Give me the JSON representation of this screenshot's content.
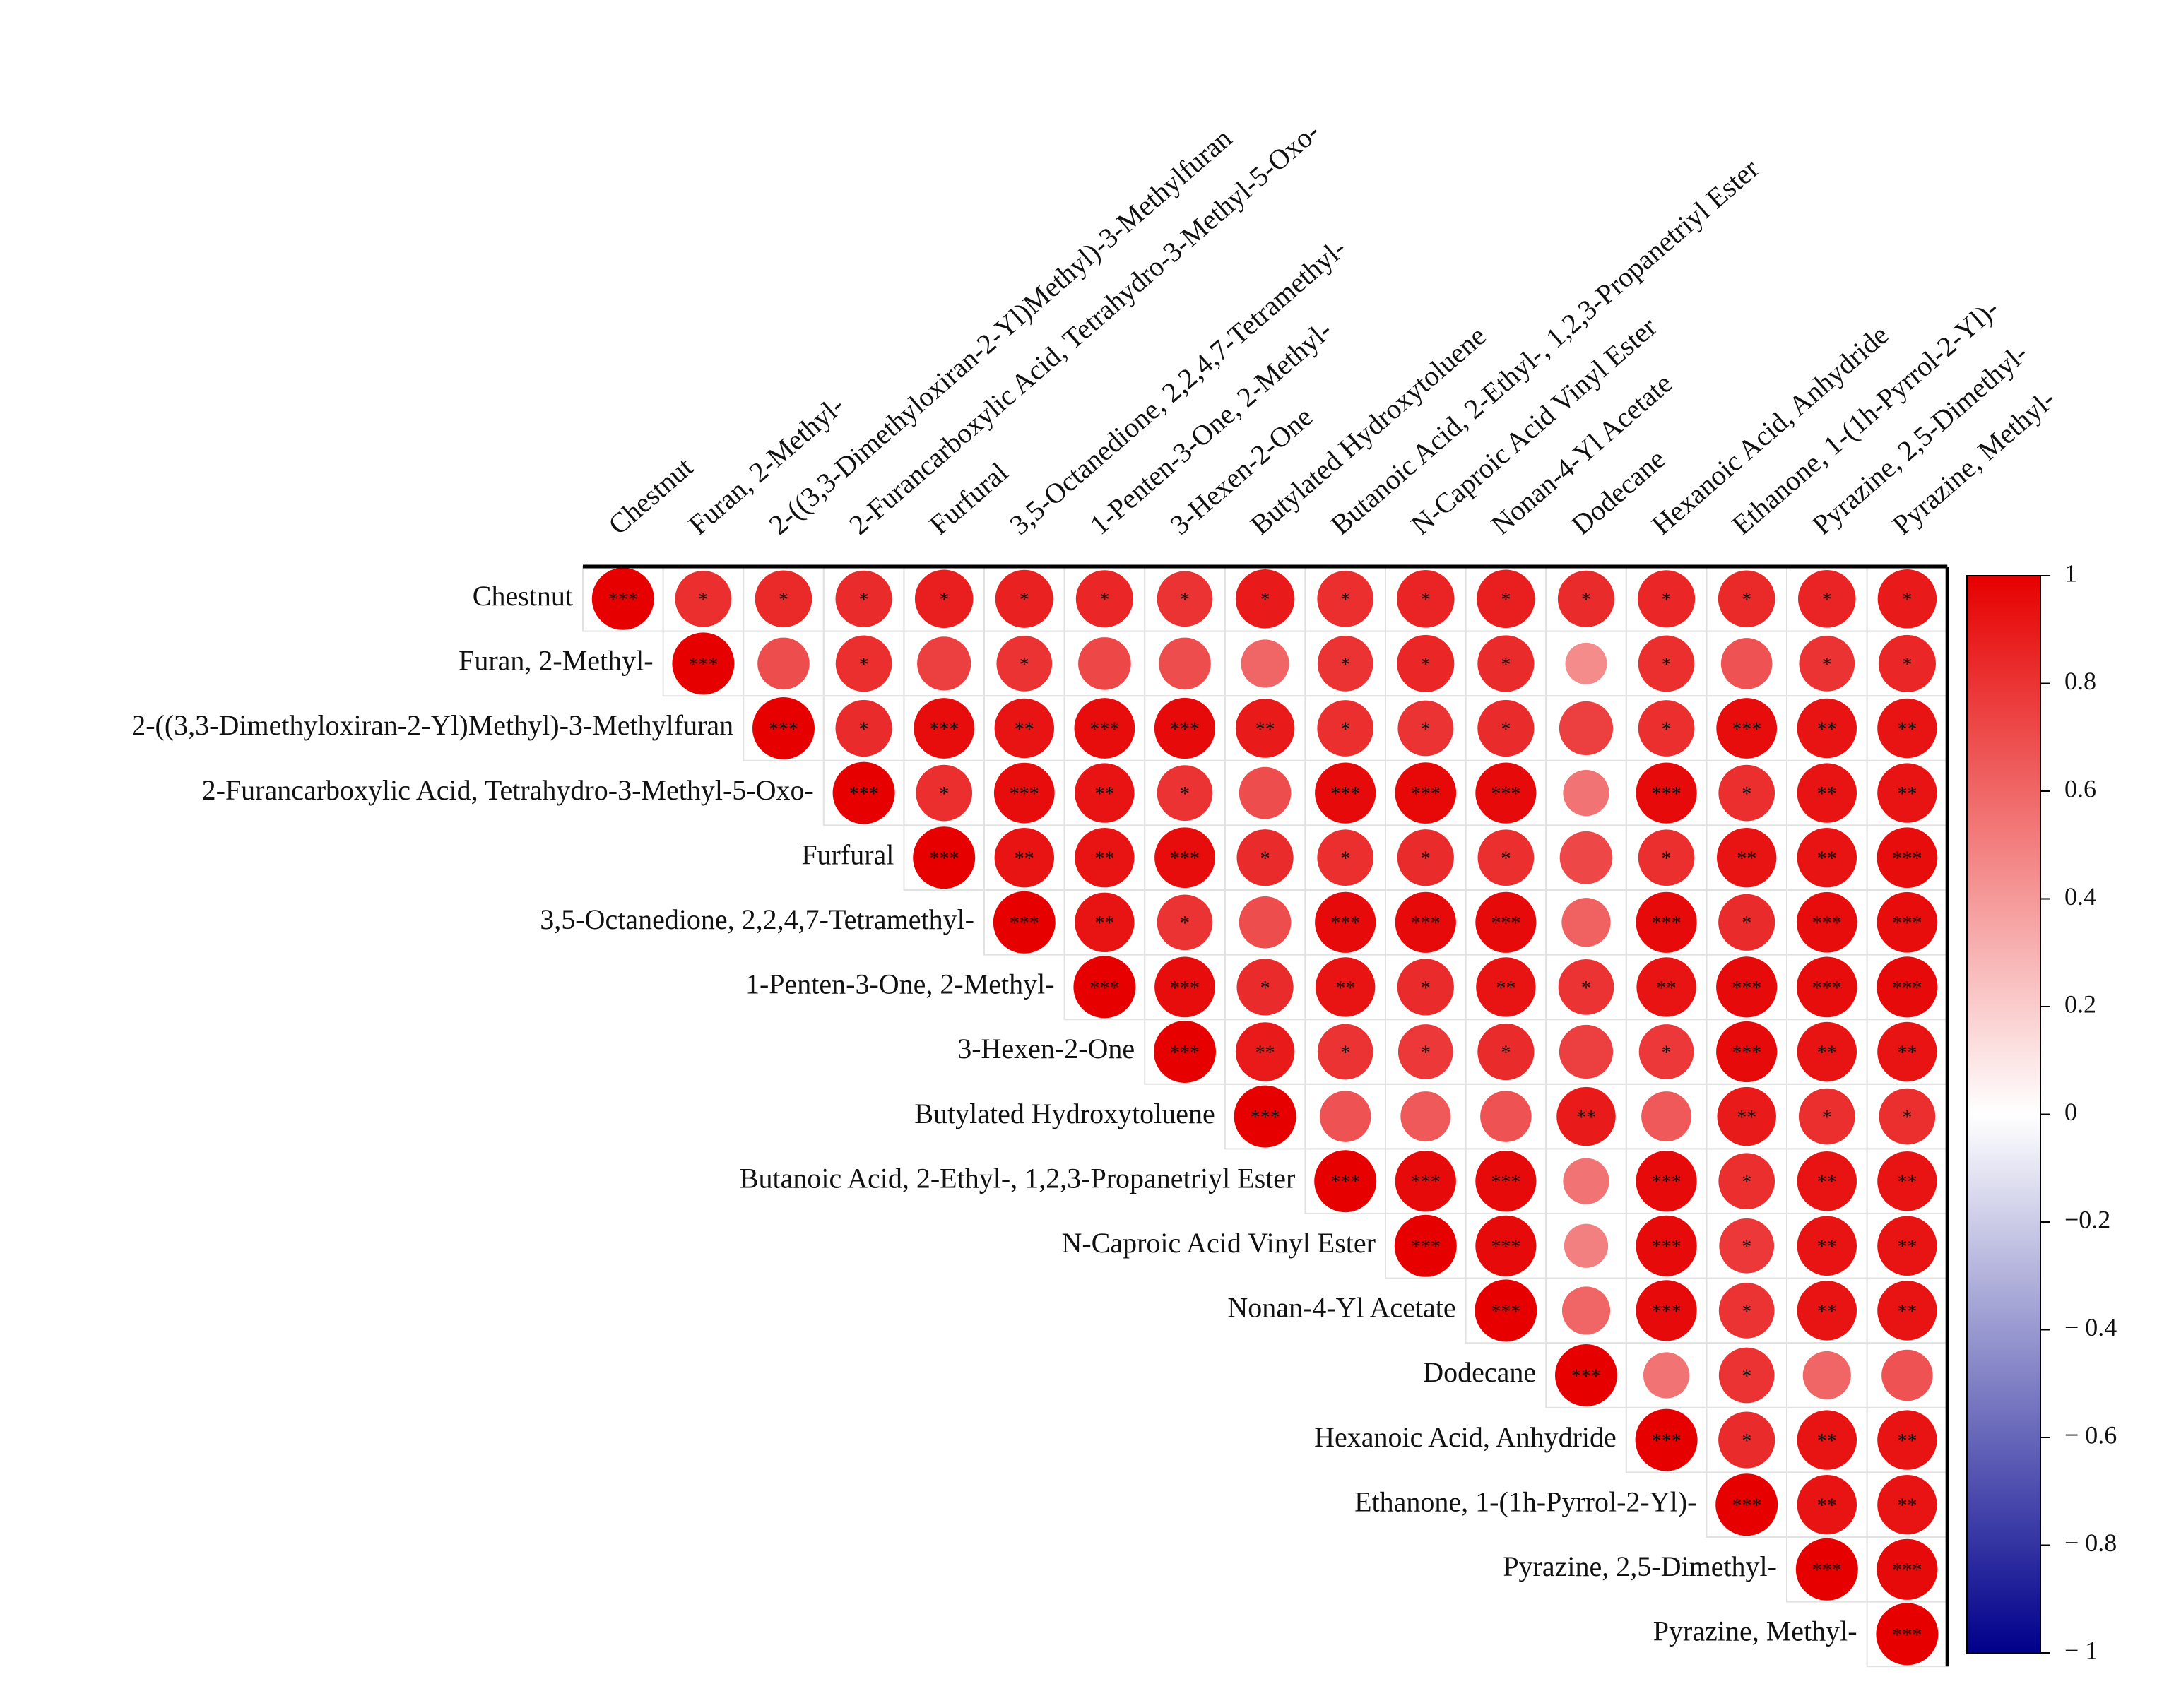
{
  "chart_data": {
    "type": "corrplot",
    "categories": [
      "Chestnut",
      "Furan, 2-Methyl-",
      "2-((3,3-Dimethyloxiran-2-Yl)Methyl)-3-Methylfuran",
      "2-Furancarboxylic Acid, Tetrahydro-3-Methyl-5-Oxo-",
      "Furfural",
      "3,5-Octanedione, 2,2,4,7-Tetramethyl-",
      "1-Penten-3-One, 2-Methyl-",
      "3-Hexen-2-One",
      "Butylated Hydroxytoluene",
      "Butanoic Acid, 2-Ethyl-, 1,2,3-Propanetriyl Ester",
      "N-Caproic Acid Vinyl Ester",
      "Nonan-4-Yl Acetate",
      "Dodecane",
      "Hexanoic Acid, Anhydride",
      "Ethanone, 1-(1h-Pyrrol-2-Yl)-",
      "Pyrazine, 2,5-Dimethyl-",
      "Pyrazine, Methyl-"
    ],
    "values": [
      [
        1,
        0.82,
        0.84,
        0.83,
        0.88,
        0.87,
        0.85,
        0.8,
        0.9,
        0.82,
        0.86,
        0.88,
        0.83,
        0.85,
        0.84,
        0.86,
        0.9
      ],
      [
        null,
        1,
        0.7,
        0.82,
        0.75,
        0.8,
        0.72,
        0.7,
        0.6,
        0.8,
        0.85,
        0.83,
        0.45,
        0.82,
        0.68,
        0.8,
        0.85
      ],
      [
        null,
        null,
        1,
        0.83,
        0.95,
        0.92,
        0.95,
        0.96,
        0.9,
        0.82,
        0.8,
        0.83,
        0.75,
        0.82,
        0.95,
        0.92,
        0.92
      ],
      [
        null,
        null,
        null,
        1,
        0.82,
        0.95,
        0.92,
        0.8,
        0.7,
        0.96,
        0.97,
        0.96,
        0.55,
        0.96,
        0.82,
        0.92,
        0.92
      ],
      [
        null,
        null,
        null,
        null,
        1,
        0.92,
        0.92,
        0.95,
        0.83,
        0.82,
        0.83,
        0.82,
        0.72,
        0.82,
        0.92,
        0.92,
        0.95
      ],
      [
        null,
        null,
        null,
        null,
        null,
        1,
        0.92,
        0.8,
        0.7,
        0.96,
        0.96,
        0.96,
        0.62,
        0.96,
        0.83,
        0.95,
        0.95
      ],
      [
        null,
        null,
        null,
        null,
        null,
        null,
        1,
        0.95,
        0.83,
        0.92,
        0.83,
        0.92,
        0.8,
        0.92,
        0.96,
        0.95,
        0.96
      ],
      [
        null,
        null,
        null,
        null,
        null,
        null,
        null,
        1,
        0.9,
        0.8,
        0.78,
        0.83,
        0.75,
        0.78,
        0.96,
        0.92,
        0.92
      ],
      [
        null,
        null,
        null,
        null,
        null,
        null,
        null,
        null,
        1,
        0.68,
        0.65,
        0.68,
        0.9,
        0.65,
        0.9,
        0.82,
        0.82
      ],
      [
        null,
        null,
        null,
        null,
        null,
        null,
        null,
        null,
        null,
        1,
        0.96,
        0.96,
        0.55,
        0.96,
        0.82,
        0.92,
        0.92
      ],
      [
        null,
        null,
        null,
        null,
        null,
        null,
        null,
        null,
        null,
        null,
        1,
        0.96,
        0.5,
        0.96,
        0.78,
        0.92,
        0.92
      ],
      [
        null,
        null,
        null,
        null,
        null,
        null,
        null,
        null,
        null,
        null,
        null,
        1,
        0.6,
        0.96,
        0.8,
        0.92,
        0.92
      ],
      [
        null,
        null,
        null,
        null,
        null,
        null,
        null,
        null,
        null,
        null,
        null,
        null,
        1,
        0.55,
        0.8,
        0.6,
        0.68
      ],
      [
        null,
        null,
        null,
        null,
        null,
        null,
        null,
        null,
        null,
        null,
        null,
        null,
        null,
        1,
        0.83,
        0.92,
        0.92
      ],
      [
        null,
        null,
        null,
        null,
        null,
        null,
        null,
        null,
        null,
        null,
        null,
        null,
        null,
        null,
        1,
        0.92,
        0.92
      ],
      [
        null,
        null,
        null,
        null,
        null,
        null,
        null,
        null,
        null,
        null,
        null,
        null,
        null,
        null,
        null,
        1,
        0.96
      ],
      [
        null,
        null,
        null,
        null,
        null,
        null,
        null,
        null,
        null,
        null,
        null,
        null,
        null,
        null,
        null,
        null,
        1
      ]
    ],
    "stars": [
      [
        "***",
        "*",
        "*",
        "*",
        "*",
        "*",
        "*",
        "*",
        "*",
        "*",
        "*",
        "*",
        "*",
        "*",
        "*",
        "*",
        "*"
      ],
      [
        null,
        "***",
        null,
        "*",
        null,
        "*",
        null,
        null,
        null,
        "*",
        "*",
        "*",
        null,
        "*",
        null,
        "*",
        "*"
      ],
      [
        null,
        null,
        "***",
        "*",
        "***",
        "**",
        "***",
        "***",
        "**",
        "*",
        "*",
        "*",
        null,
        "*",
        "***",
        "**",
        "**"
      ],
      [
        null,
        null,
        null,
        "***",
        "*",
        "***",
        "**",
        "*",
        null,
        "***",
        "***",
        "***",
        null,
        "***",
        "*",
        "**",
        "**"
      ],
      [
        null,
        null,
        null,
        null,
        "***",
        "**",
        "**",
        "***",
        "*",
        "*",
        "*",
        "*",
        null,
        "*",
        "**",
        "**",
        "***"
      ],
      [
        null,
        null,
        null,
        null,
        null,
        "***",
        "**",
        "*",
        null,
        "***",
        "***",
        "***",
        null,
        "***",
        "*",
        "***",
        "***"
      ],
      [
        null,
        null,
        null,
        null,
        null,
        null,
        "***",
        "***",
        "*",
        "**",
        "*",
        "**",
        "*",
        "**",
        "***",
        "***",
        "***"
      ],
      [
        null,
        null,
        null,
        null,
        null,
        null,
        null,
        "***",
        "**",
        "*",
        "*",
        "*",
        null,
        "*",
        "***",
        "**",
        "**"
      ],
      [
        null,
        null,
        null,
        null,
        null,
        null,
        null,
        null,
        "***",
        null,
        null,
        null,
        "**",
        null,
        "**",
        "*",
        "*"
      ],
      [
        null,
        null,
        null,
        null,
        null,
        null,
        null,
        null,
        null,
        "***",
        "***",
        "***",
        null,
        "***",
        "*",
        "**",
        "**"
      ],
      [
        null,
        null,
        null,
        null,
        null,
        null,
        null,
        null,
        null,
        null,
        "***",
        "***",
        null,
        "***",
        "*",
        "**",
        "**"
      ],
      [
        null,
        null,
        null,
        null,
        null,
        null,
        null,
        null,
        null,
        null,
        null,
        "***",
        null,
        "***",
        "*",
        "**",
        "**"
      ],
      [
        null,
        null,
        null,
        null,
        null,
        null,
        null,
        null,
        null,
        null,
        null,
        null,
        "***",
        null,
        "*",
        null,
        null
      ],
      [
        null,
        null,
        null,
        null,
        null,
        null,
        null,
        null,
        null,
        null,
        null,
        null,
        null,
        "***",
        "*",
        "**",
        "**"
      ],
      [
        null,
        null,
        null,
        null,
        null,
        null,
        null,
        null,
        null,
        null,
        null,
        null,
        null,
        null,
        "***",
        "**",
        "**"
      ],
      [
        null,
        null,
        null,
        null,
        null,
        null,
        null,
        null,
        null,
        null,
        null,
        null,
        null,
        null,
        null,
        "***",
        "***"
      ],
      [
        null,
        null,
        null,
        null,
        null,
        null,
        null,
        null,
        null,
        null,
        null,
        null,
        null,
        null,
        null,
        null,
        "***"
      ]
    ],
    "colormap": [
      "#00008b",
      "#ffffff",
      "#e60000"
    ],
    "clim": [
      -1,
      1
    ],
    "cticks": [
      1,
      0.8,
      0.6,
      0.4,
      0.2,
      0,
      {
        "value": -0.2,
        "label": "−0.2"
      },
      {
        "value": -0.4,
        "label": "− 0.4"
      },
      {
        "value": -0.6,
        "label": "− 0.6"
      },
      {
        "value": -0.8,
        "label": "− 0.8"
      },
      {
        "value": -1,
        "label": "− 1"
      }
    ]
  }
}
